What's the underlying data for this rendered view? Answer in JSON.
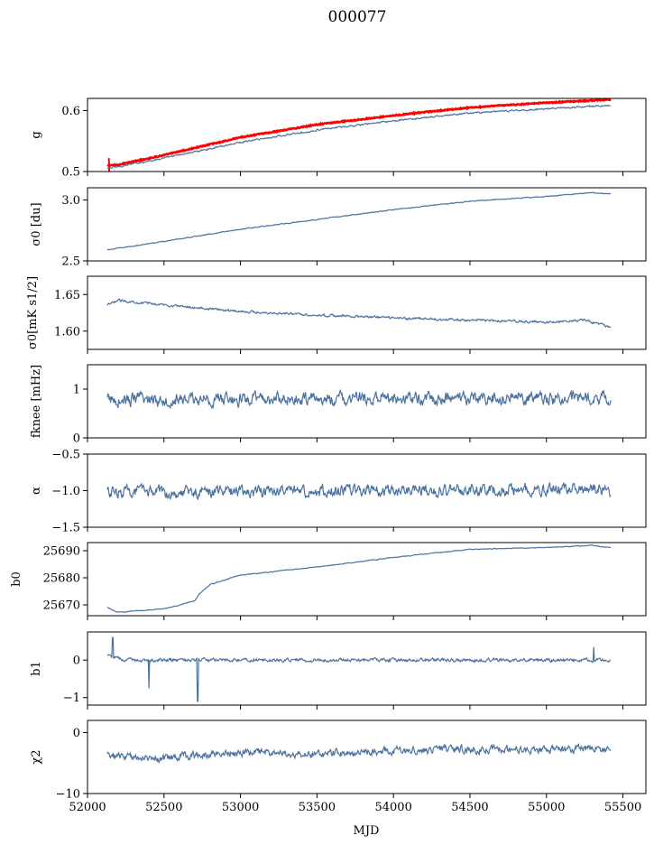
{
  "figure": {
    "title": "000077"
  },
  "chart_data": {
    "type": "line",
    "shared_x": {
      "label": "MJD",
      "range": [
        52000,
        55650
      ],
      "ticks": [
        52000,
        52500,
        53000,
        53500,
        54000,
        54500,
        55000,
        55500
      ],
      "tick_labels": [
        "52000",
        "52500",
        "53000",
        "53500",
        "54000",
        "54500",
        "55000",
        "55500"
      ]
    },
    "series_color": "#4c72a0",
    "accent_color": "#ff0000",
    "panels": [
      {
        "key": "g",
        "ylabel": "g",
        "ylim": [
          0.5,
          0.62
        ],
        "ticks": [
          0.5,
          0.6
        ],
        "tick_labels": [
          "0.5",
          "0.6"
        ],
        "x_start": 52130,
        "x_end": 55420,
        "noise": 0.0015,
        "trend": [
          [
            52130,
            0.505
          ],
          [
            52200,
            0.508
          ],
          [
            52500,
            0.522
          ],
          [
            53000,
            0.548
          ],
          [
            53500,
            0.568
          ],
          [
            54000,
            0.583
          ],
          [
            54500,
            0.596
          ],
          [
            55000,
            0.603
          ],
          [
            55420,
            0.609
          ]
        ],
        "red_trend": [
          [
            52130,
            0.51
          ],
          [
            52200,
            0.511
          ],
          [
            52500,
            0.527
          ],
          [
            53000,
            0.556
          ],
          [
            53500,
            0.577
          ],
          [
            54000,
            0.592
          ],
          [
            54500,
            0.605
          ],
          [
            55000,
            0.613
          ],
          [
            55420,
            0.618
          ]
        ]
      },
      {
        "key": "sigma0_du",
        "ylabel": "σ0 [du]",
        "ylim": [
          2.5,
          3.1
        ],
        "ticks": [
          2.5,
          3.0
        ],
        "tick_labels": [
          "2.5",
          "3.0"
        ],
        "x_start": 52130,
        "x_end": 55420,
        "noise": 0.004,
        "trend": [
          [
            52130,
            2.59
          ],
          [
            52500,
            2.66
          ],
          [
            53000,
            2.76
          ],
          [
            53500,
            2.84
          ],
          [
            54000,
            2.92
          ],
          [
            54500,
            2.99
          ],
          [
            55000,
            3.03
          ],
          [
            55300,
            3.06
          ],
          [
            55420,
            3.05
          ]
        ]
      },
      {
        "key": "sigma0_mk",
        "ylabel": "σ0[mK s1/2]",
        "ylim": [
          1.575,
          1.675
        ],
        "ticks": [
          1.6,
          1.65
        ],
        "tick_labels": [
          "1.60",
          "1.65"
        ],
        "x_start": 52130,
        "x_end": 55420,
        "noise": 0.0018,
        "trend": [
          [
            52130,
            1.635
          ],
          [
            52200,
            1.642
          ],
          [
            52500,
            1.636
          ],
          [
            53000,
            1.627
          ],
          [
            53500,
            1.622
          ],
          [
            54000,
            1.618
          ],
          [
            54500,
            1.615
          ],
          [
            55000,
            1.612
          ],
          [
            55250,
            1.615
          ],
          [
            55420,
            1.605
          ]
        ]
      },
      {
        "key": "fknee",
        "ylabel": "fknee [mHz]",
        "ylim": [
          0,
          1.5
        ],
        "ticks": [
          0,
          1
        ],
        "tick_labels": [
          "0",
          "1"
        ],
        "x_start": 52130,
        "x_end": 55420,
        "noise": 0.15,
        "trend": [
          [
            52130,
            0.78
          ],
          [
            55420,
            0.82
          ]
        ]
      },
      {
        "key": "alpha",
        "ylabel": "α",
        "ylim": [
          -1.5,
          -0.5
        ],
        "ticks": [
          -1.5,
          -1.0,
          -0.5
        ],
        "tick_labels": [
          "−1.5",
          "−1.0",
          "−0.5"
        ],
        "x_start": 52130,
        "x_end": 55420,
        "noise": 0.09,
        "trend": [
          [
            52130,
            -1.02
          ],
          [
            55420,
            -0.98
          ]
        ]
      },
      {
        "key": "b0",
        "ylabel": "b0",
        "ylim": [
          25666,
          25693
        ],
        "ticks": [
          25670,
          25680,
          25690
        ],
        "tick_labels": [
          "25670",
          "25680",
          "25690"
        ],
        "x_start": 52130,
        "x_end": 55420,
        "noise": 0.15,
        "trend": [
          [
            52130,
            25669
          ],
          [
            52200,
            25667.3
          ],
          [
            52500,
            25668.5
          ],
          [
            52700,
            25671.5
          ],
          [
            52730,
            25674
          ],
          [
            52800,
            25677.5
          ],
          [
            53000,
            25681
          ],
          [
            53500,
            25684
          ],
          [
            54000,
            25687.5
          ],
          [
            54500,
            25690.5
          ],
          [
            55000,
            25691.2
          ],
          [
            55300,
            25692
          ],
          [
            55420,
            25691
          ]
        ]
      },
      {
        "key": "b1",
        "ylabel": "b1",
        "ylim": [
          -1.2,
          0.75
        ],
        "ticks": [
          -1,
          0
        ],
        "tick_labels": [
          "−1",
          "0"
        ],
        "x_start": 52130,
        "x_end": 55420,
        "noise": 0.05,
        "trend": [
          [
            52130,
            0.1
          ],
          [
            52250,
            0.0
          ],
          [
            55420,
            0.0
          ]
        ],
        "spikes": [
          [
            52165,
            0.6
          ],
          [
            52400,
            -0.75
          ],
          [
            52720,
            -1.1
          ],
          [
            55310,
            0.35
          ]
        ]
      },
      {
        "key": "chi2",
        "ylabel": "χ2",
        "ylim": [
          -10,
          2
        ],
        "ticks": [
          -10,
          0
        ],
        "tick_labels": [
          "−10",
          "0"
        ],
        "x_start": 52130,
        "x_end": 55420,
        "noise": 0.7,
        "trend": [
          [
            52130,
            -3.8
          ],
          [
            52500,
            -4.2
          ],
          [
            53000,
            -3.2
          ],
          [
            53500,
            -3.6
          ],
          [
            54000,
            -2.9
          ],
          [
            54500,
            -2.7
          ],
          [
            55000,
            -2.9
          ],
          [
            55420,
            -2.6
          ]
        ]
      }
    ]
  }
}
